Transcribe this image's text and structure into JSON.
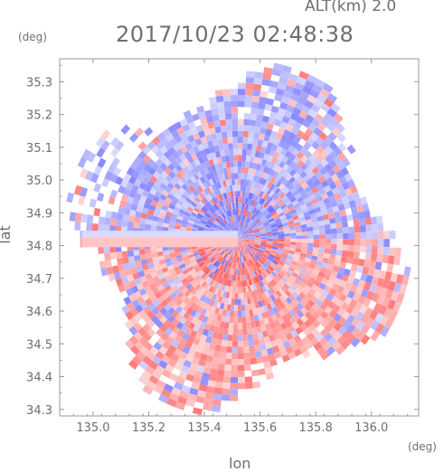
{
  "header": {
    "alt_label": "ALT(km) 2.0",
    "timestamp": "2017/10/23 02:48:38"
  },
  "colors": {
    "positive": "#ff5a5a",
    "negative": "#6a6aff",
    "frame": "#9a9a9a",
    "text": "#6f6f6f"
  },
  "chart_data": {
    "type": "heatmap",
    "title": "",
    "xlabel": "lon",
    "ylabel": "lat",
    "x_unit": "(deg)",
    "y_unit": "(deg)",
    "xlim": [
      134.88,
      136.17
    ],
    "ylim": [
      34.28,
      35.37
    ],
    "x_ticks": [
      135.0,
      135.2,
      135.4,
      135.6,
      135.8,
      136.0
    ],
    "x_tick_labels": [
      "135.0",
      "135.2",
      "135.4",
      "135.6",
      "135.8",
      "136.0"
    ],
    "y_ticks": [
      34.3,
      34.4,
      34.5,
      34.6,
      34.7,
      34.8,
      34.9,
      35.0,
      35.1,
      35.2,
      35.3
    ],
    "y_tick_labels": [
      "34.3",
      "34.4",
      "34.5",
      "34.6",
      "34.7",
      "34.8",
      "34.9",
      "35.0",
      "35.1",
      "35.2",
      "35.3"
    ],
    "radar_center": {
      "lon": 135.52,
      "lat": 34.82
    },
    "radar_range_deg": {
      "lon": 0.63,
      "lat": 0.55
    },
    "sectors": [
      {
        "bearing_range": [
          0,
          90
        ],
        "sign": "negative",
        "note": "north-east, mostly blue"
      },
      {
        "bearing_range": [
          90,
          180
        ],
        "sign": "positive",
        "note": "south-east, mostly red"
      },
      {
        "bearing_range": [
          180,
          270
        ],
        "sign": "positive",
        "note": "south-west, mostly red"
      },
      {
        "bearing_range": [
          270,
          360
        ],
        "sign": "negative",
        "note": "north-west, mostly blue"
      }
    ],
    "grid": false
  }
}
